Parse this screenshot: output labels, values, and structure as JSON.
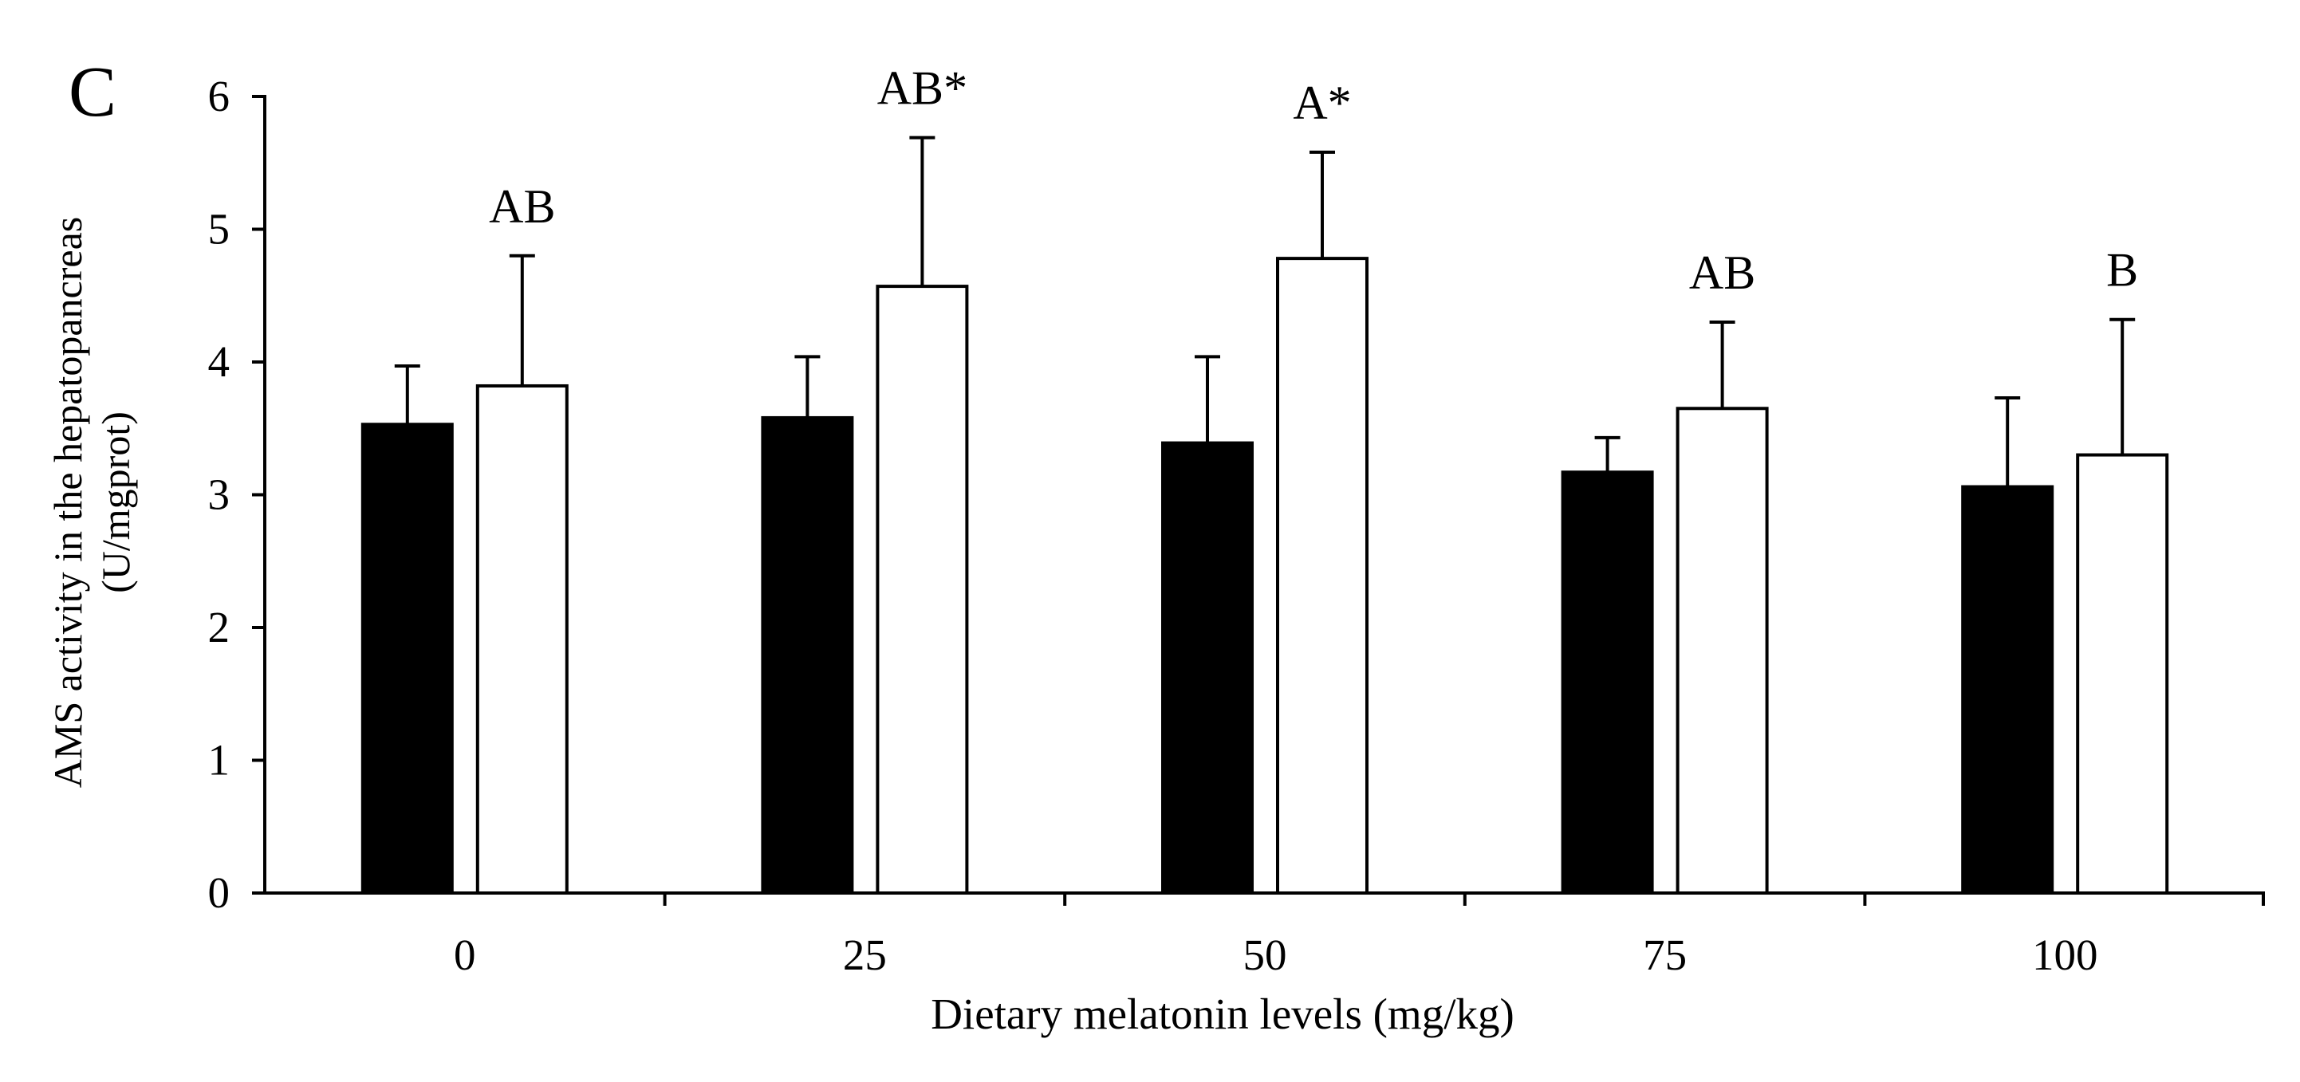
{
  "colors": {
    "axis": "#000000",
    "series_control": "#000000",
    "series_melatonin": "#ffffff",
    "bar_outline": "#000000",
    "background": "#ffffff"
  },
  "chart_data": {
    "type": "bar",
    "panel_label": "C",
    "xlabel": "Dietary melatonin levels (mg/kg)",
    "ylabel_line1": "AMS activity in the hepatopancreas",
    "ylabel_line2": "(U/mgprot)",
    "ylim": [
      0,
      6
    ],
    "yticks": [
      0,
      1,
      2,
      3,
      4,
      5,
      6
    ],
    "ytick_labels": [
      "0",
      "1",
      "2",
      "3",
      "4",
      "5",
      "6"
    ],
    "categories": [
      "0",
      "25",
      "50",
      "75",
      "100"
    ],
    "legend": "none",
    "series": [
      {
        "name": "black bars",
        "fill": "#000000",
        "values": [
          3.53,
          3.58,
          3.39,
          3.17,
          3.06
        ],
        "errors": [
          0.44,
          0.46,
          0.65,
          0.26,
          0.67
        ]
      },
      {
        "name": "white bars",
        "fill": "#ffffff",
        "values": [
          3.82,
          4.57,
          4.78,
          3.65,
          3.3
        ],
        "errors": [
          0.98,
          1.12,
          0.8,
          0.65,
          1.02
        ]
      }
    ],
    "annotations": [
      "AB",
      "AB*",
      "A*",
      "AB",
      "B"
    ]
  }
}
